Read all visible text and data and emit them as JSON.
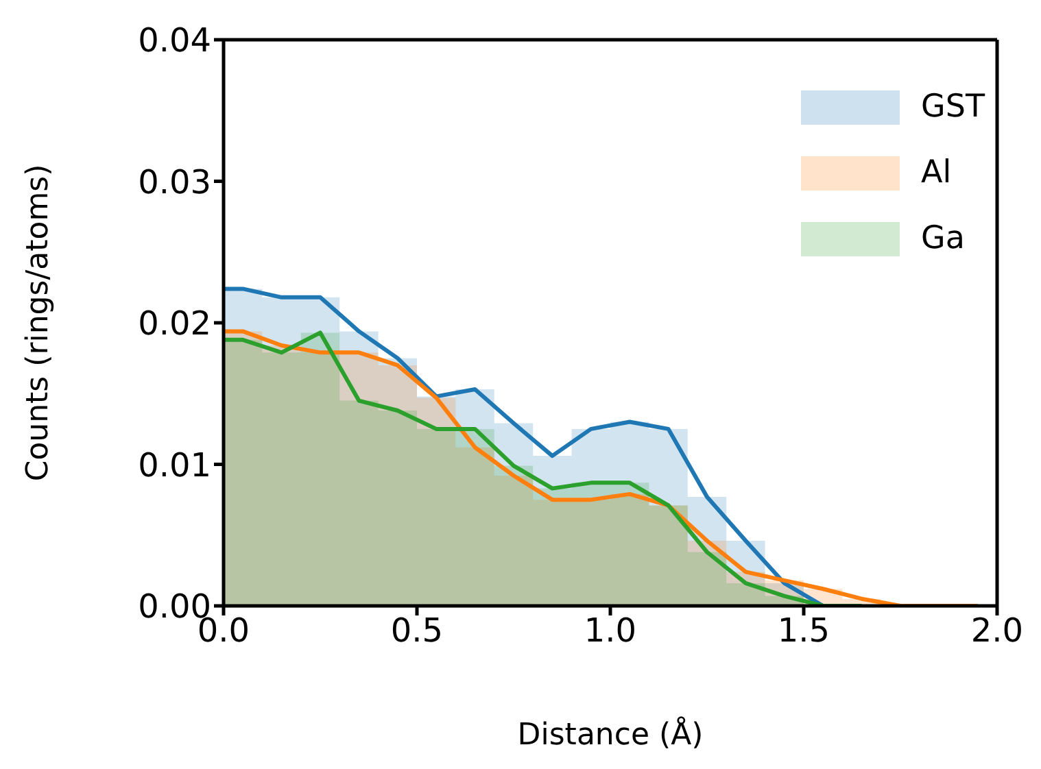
{
  "chart_data": {
    "type": "histogram",
    "xlabel": "Distance (Å)",
    "ylabel": "Counts (rings/atoms)",
    "bins": [
      0,
      0.1,
      0.2,
      0.3,
      0.4,
      0.5,
      0.6,
      0.7,
      0.8,
      0.9,
      1.0,
      1.1,
      1.2,
      1.3,
      1.4,
      1.5,
      1.6,
      1.7,
      1.8,
      1.9,
      2.0
    ],
    "series": [
      {
        "name": "GST",
        "color": "#1f77b4",
        "values": [
          0.0224,
          0.0218,
          0.0218,
          0.0194,
          0.0175,
          0.0148,
          0.0153,
          0.0129,
          0.0106,
          0.0125,
          0.013,
          0.0125,
          0.0077,
          0.0046,
          0.0016,
          0,
          0,
          0,
          0,
          0
        ]
      },
      {
        "name": "Al",
        "color": "#ff7f0e",
        "values": [
          0.0194,
          0.0184,
          0.0179,
          0.0179,
          0.017,
          0.0147,
          0.0112,
          0.0092,
          0.0075,
          0.0075,
          0.0079,
          0.0071,
          0.0046,
          0.0024,
          0.0018,
          0.0012,
          0.0005,
          0,
          0,
          0
        ]
      },
      {
        "name": "Ga",
        "color": "#2ca02c",
        "values": [
          0.0188,
          0.0179,
          0.0193,
          0.0145,
          0.0138,
          0.0125,
          0.0125,
          0.0099,
          0.0083,
          0.0087,
          0.0087,
          0.0071,
          0.0038,
          0.0016,
          0.0007,
          0,
          0,
          0,
          0,
          0
        ]
      },
      {
        "type": "line",
        "color": "#1f77b4",
        "x": [
          0,
          0.05,
          0.15,
          0.25,
          0.35,
          0.45,
          0.55,
          0.65,
          0.75,
          0.85,
          0.95,
          1.05,
          1.15,
          1.25,
          1.35,
          1.45,
          1.55,
          1.65
        ],
        "values": [
          0.0224,
          0.0224,
          0.0218,
          0.0218,
          0.0194,
          0.0175,
          0.0148,
          0.0153,
          0.0129,
          0.0106,
          0.0125,
          0.013,
          0.0125,
          0.0077,
          0.0046,
          0.0016,
          0,
          0
        ]
      },
      {
        "type": "line",
        "color": "#ff7f0e",
        "x": [
          0,
          0.05,
          0.15,
          0.25,
          0.35,
          0.45,
          0.55,
          0.65,
          0.75,
          0.85,
          0.95,
          1.05,
          1.15,
          1.25,
          1.35,
          1.45,
          1.55,
          1.65,
          1.75,
          1.85,
          1.95
        ],
        "values": [
          0.0194,
          0.0194,
          0.0184,
          0.0179,
          0.0179,
          0.017,
          0.0147,
          0.0112,
          0.0092,
          0.0075,
          0.0075,
          0.0079,
          0.0071,
          0.0046,
          0.0024,
          0.0018,
          0.0012,
          0.0005,
          0,
          0,
          0
        ]
      },
      {
        "type": "line",
        "color": "#2ca02c",
        "x": [
          0,
          0.05,
          0.15,
          0.25,
          0.35,
          0.45,
          0.55,
          0.65,
          0.75,
          0.85,
          0.95,
          1.05,
          1.15,
          1.25,
          1.35,
          1.45,
          1.55,
          1.65
        ],
        "values": [
          0.0188,
          0.0188,
          0.0179,
          0.0193,
          0.0145,
          0.0138,
          0.0125,
          0.0125,
          0.0099,
          0.0083,
          0.0087,
          0.0087,
          0.0071,
          0.0038,
          0.0016,
          0.0007,
          0,
          0
        ]
      }
    ],
    "xlim": [
      0,
      2.0
    ],
    "ylim": [
      0,
      0.04
    ],
    "xticks": [
      {
        "value": 0,
        "label": "0.0"
      },
      {
        "value": 0.5,
        "label": "0.5"
      },
      {
        "value": 1,
        "label": "1.0"
      },
      {
        "value": 1.5,
        "label": "1.5"
      },
      {
        "value": 2,
        "label": "2.0"
      }
    ],
    "yticks": [
      {
        "value": 0,
        "label": "0.00"
      },
      {
        "value": 0.01,
        "label": "0.01"
      },
      {
        "value": 0.02,
        "label": "0.02"
      },
      {
        "value": 0.03,
        "label": "0.03"
      },
      {
        "value": 0.04,
        "label": "0.04"
      }
    ],
    "legend": "top right"
  }
}
